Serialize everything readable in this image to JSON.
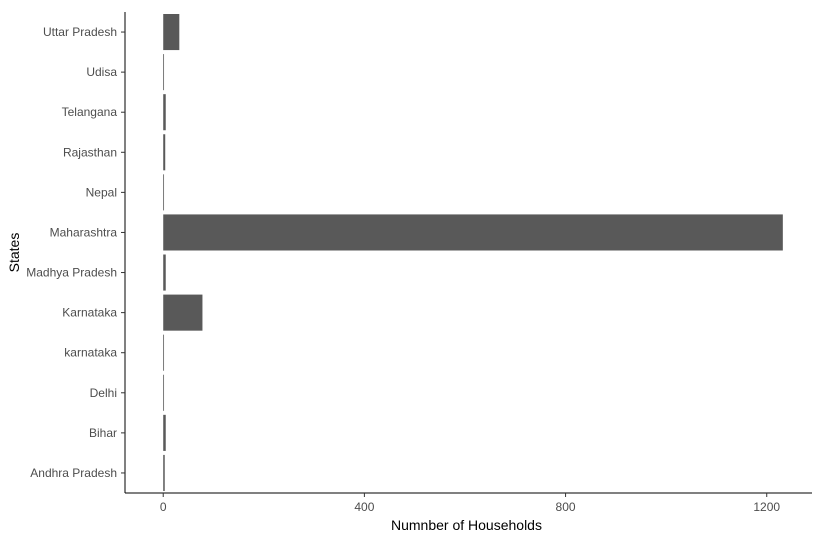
{
  "chart_data": {
    "type": "bar",
    "orientation": "horizontal",
    "title": "",
    "xlabel": "Numnber of Households",
    "ylabel": "States",
    "xlim": [
      -76,
      1290
    ],
    "xticks": [
      0,
      400,
      800,
      1200
    ],
    "grid": false,
    "legend": "none",
    "bar_color": "#595959",
    "categories": [
      "Andhra Pradesh",
      "Bihar",
      "Delhi",
      "karnataka",
      "Karnataka",
      "Madhya Pradesh",
      "Maharashtra",
      "Nepal",
      "Rajasthan",
      "Telangana",
      "Udisa",
      "Uttar Pradesh"
    ],
    "values": [
      3,
      5,
      1,
      1,
      78,
      5,
      1232,
      1,
      4,
      5,
      1,
      32
    ]
  }
}
